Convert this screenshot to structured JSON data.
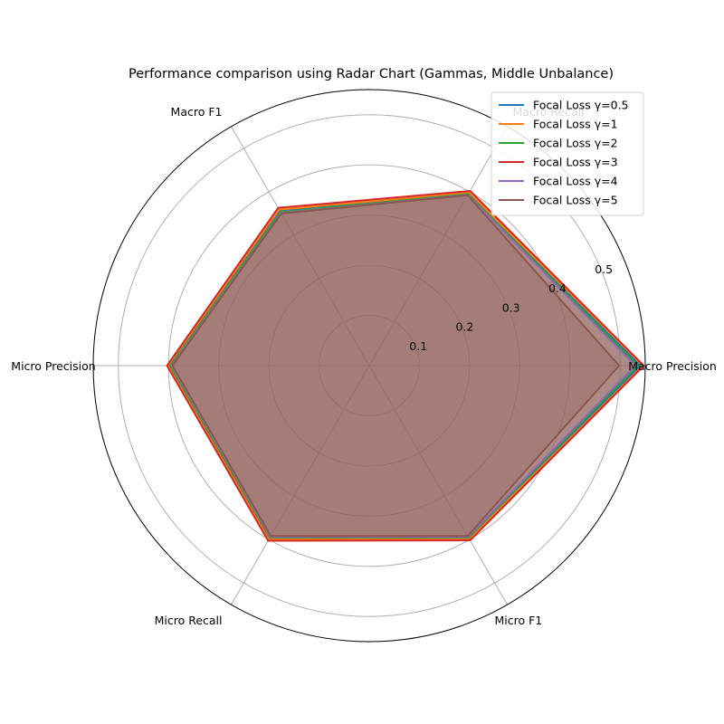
{
  "chart_data": {
    "type": "radar",
    "title": "Performance comparison using Radar Chart (Gammas, Middle Unbalance)",
    "axes": [
      "Macro Precision",
      "Macro Recall",
      "Macro F1",
      "Micro Precision",
      "Micro Recall",
      "Micro F1"
    ],
    "rticks": [
      0.1,
      0.2,
      0.3,
      0.4,
      0.5
    ],
    "rlim": [
      0,
      0.55
    ],
    "grid": true,
    "legend_position": "top-right",
    "series": [
      {
        "name": "Focal Loss γ=0.5",
        "color": "#1f77b4",
        "values": [
          0.54,
          0.397,
          0.357,
          0.4,
          0.399,
          0.398
        ]
      },
      {
        "name": "Focal Loss γ=1",
        "color": "#ff7f0e",
        "values": [
          0.545,
          0.398,
          0.359,
          0.401,
          0.4,
          0.399
        ]
      },
      {
        "name": "Focal Loss γ=2",
        "color": "#2ca02c",
        "values": [
          0.535,
          0.395,
          0.353,
          0.397,
          0.396,
          0.396
        ]
      },
      {
        "name": "Focal Loss γ=3",
        "color": "#d62728",
        "values": [
          0.547,
          0.402,
          0.363,
          0.403,
          0.403,
          0.402
        ]
      },
      {
        "name": "Focal Loss γ=4",
        "color": "#9467bd",
        "values": [
          0.53,
          0.393,
          0.351,
          0.394,
          0.394,
          0.394
        ]
      },
      {
        "name": "Focal Loss γ=5",
        "color": "#8c564b",
        "values": [
          0.498,
          0.392,
          0.35,
          0.392,
          0.392,
          0.392
        ]
      }
    ]
  }
}
